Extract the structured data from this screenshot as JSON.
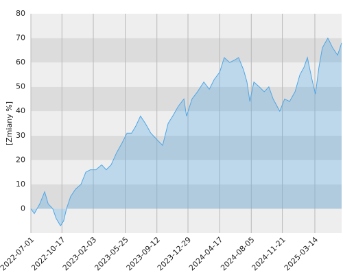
{
  "chart_data": {
    "type": "area",
    "y_label": "[Zmiany %]",
    "x": [
      "2022-07-01",
      "2022-07-13",
      "2022-08-01",
      "2022-08-18",
      "2022-08-30",
      "2022-09-15",
      "2022-09-27",
      "2022-10-12",
      "2022-10-23",
      "2022-11-02",
      "2022-11-16",
      "2022-12-03",
      "2022-12-22",
      "2023-01-08",
      "2023-01-24",
      "2023-02-12",
      "2023-03-04",
      "2023-03-20",
      "2023-04-06",
      "2023-04-25",
      "2023-05-14",
      "2023-05-31",
      "2023-06-16",
      "2023-07-01",
      "2023-07-17",
      "2023-08-03",
      "2023-08-22",
      "2023-09-15",
      "2023-10-02",
      "2023-10-21",
      "2023-11-06",
      "2023-11-25",
      "2023-12-15",
      "2023-12-24",
      "2024-01-12",
      "2024-01-31",
      "2024-02-22",
      "2024-03-12",
      "2024-03-29",
      "2024-04-17",
      "2024-05-03",
      "2024-05-22",
      "2024-06-08",
      "2024-06-22",
      "2024-07-09",
      "2024-07-21",
      "2024-07-31",
      "2024-08-14",
      "2024-09-02",
      "2024-09-19",
      "2024-10-05",
      "2024-10-20",
      "2024-11-03",
      "2024-11-12",
      "2024-11-29",
      "2024-12-16",
      "2025-01-04",
      "2025-01-21",
      "2025-02-04",
      "2025-02-16",
      "2025-03-04",
      "2025-03-16",
      "2025-03-28",
      "2025-04-09",
      "2025-04-28",
      "2025-05-15",
      "2025-06-01",
      "2025-06-15"
    ],
    "values": [
      0,
      -2,
      2,
      7,
      2,
      0,
      -4,
      -7,
      -5,
      0,
      5,
      8,
      10,
      15,
      16,
      16,
      18,
      16,
      18,
      23,
      27,
      31,
      31,
      34,
      38,
      35,
      31,
      28,
      26,
      35,
      38,
      42,
      45,
      38,
      45,
      48,
      52,
      49,
      53,
      56,
      62,
      60,
      61,
      62,
      57,
      52,
      44,
      52,
      50,
      48,
      50,
      45,
      42,
      40,
      45,
      44,
      48,
      55,
      58,
      62,
      53,
      47,
      58,
      66,
      70,
      66,
      63,
      68
    ],
    "color": "#4da6e6",
    "xlim": [
      "2022-07-01",
      "2025-06-15"
    ],
    "xticks": [
      "2022-07-01",
      "2022-10-17",
      "2023-02-03",
      "2023-05-25",
      "2023-09-12",
      "2023-12-29",
      "2024-04-17",
      "2024-08-05",
      "2024-11-21",
      "2025-03-14"
    ],
    "ylim": [
      -10,
      80
    ],
    "yticks": [
      0,
      10,
      20,
      30,
      40,
      50,
      60,
      70,
      80
    ],
    "grid": true
  }
}
